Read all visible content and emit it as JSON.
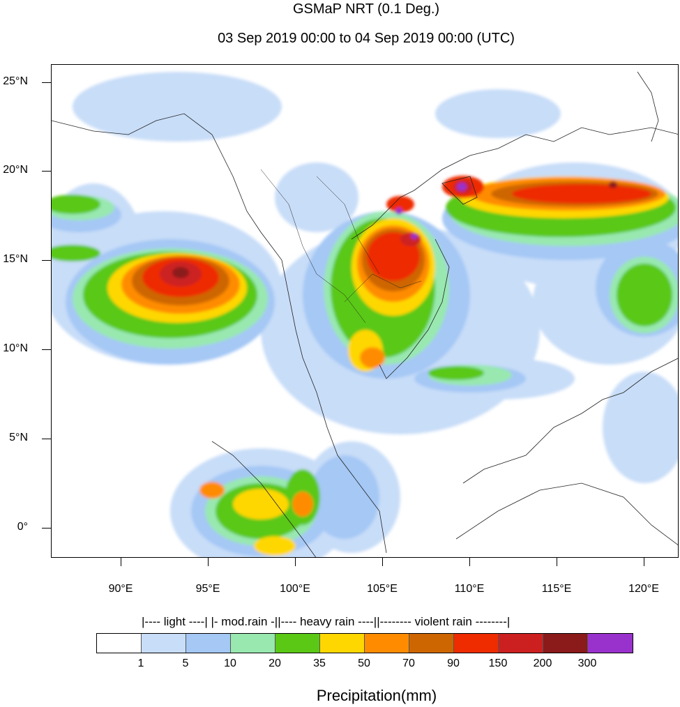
{
  "title": "GSMaP NRT (0.1 Deg.)",
  "subtitle": "03 Sep 2019 00:00 to 04 Sep 2019 00:00 (UTC)",
  "map": {
    "lat_labels": [
      "25°N",
      "20°N",
      "15°N",
      "10°N",
      "5°N",
      "0°"
    ],
    "lon_labels": [
      "90°E",
      "95°E",
      "100°E",
      "105°E",
      "110°E",
      "115°E",
      "120°E"
    ],
    "lat_values": [
      25,
      20,
      15,
      10,
      5,
      0
    ],
    "lon_values": [
      90,
      95,
      100,
      105,
      110,
      115,
      120
    ],
    "extent": {
      "lon_min": 86,
      "lon_max": 122,
      "lat_min": -1.7,
      "lat_max": 26
    }
  },
  "legend": {
    "group_text": "|---- light ----| |- mod.rain -||---- heavy rain ----||-------- violent rain --------|",
    "bin_labels": [
      "1",
      "5",
      "10",
      "20",
      "35",
      "50",
      "70",
      "90",
      "150",
      "200",
      "300"
    ],
    "colors": [
      "#ffffff",
      "#c8ddf8",
      "#a5c8f5",
      "#98e8b0",
      "#5ac815",
      "#ffd700",
      "#ff8c00",
      "#cd6600",
      "#ee2c00",
      "#cc2020",
      "#8b1a1a",
      "#9932cc"
    ],
    "title": "Precipitation(mm)"
  }
}
